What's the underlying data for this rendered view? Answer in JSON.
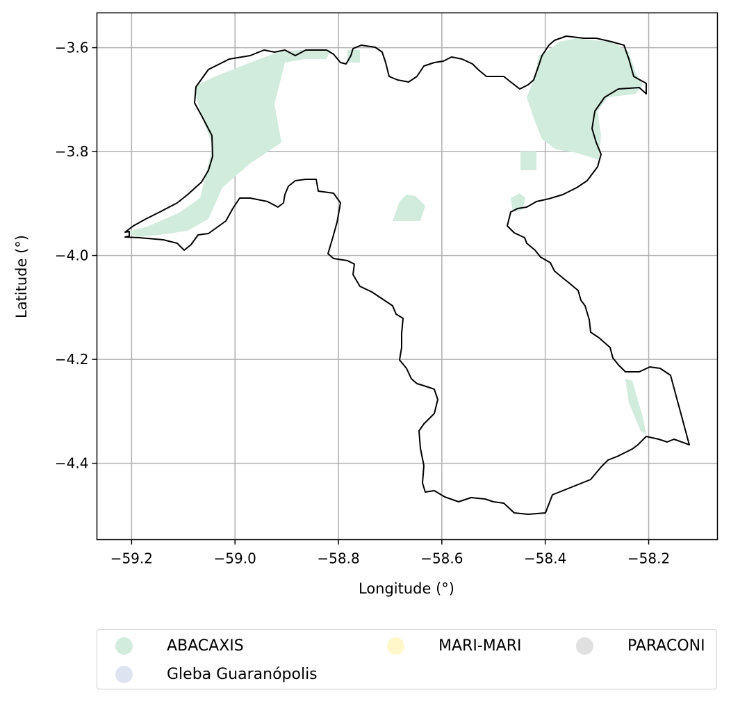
{
  "chart_data": {
    "type": "map",
    "xlabel": "Longitude (°)",
    "ylabel": "Latitude (°)",
    "xlim": [
      -59.267,
      -58.067
    ],
    "ylim": [
      -4.547,
      -3.533
    ],
    "x_ticks": [
      -59.2,
      -59.0,
      -58.8,
      -58.6,
      -58.4,
      -58.2
    ],
    "x_tick_labels": [
      "−59.2",
      "−59.0",
      "−58.8",
      "−58.6",
      "−58.4",
      "−58.2"
    ],
    "y_ticks": [
      -3.6,
      -3.8,
      -4.0,
      -4.2,
      -4.4
    ],
    "y_tick_labels": [
      "−3.6",
      "−3.8",
      "−4.0",
      "−4.2",
      "−4.4"
    ],
    "grid": true,
    "legend_position": "below",
    "categories": [
      {
        "name": "ABACAXIS",
        "color": "#d1ebdd"
      },
      {
        "name": "Gleba Guaranópolis",
        "color": "#dde3f0"
      },
      {
        "name": "MARI-MARI",
        "color": "#fff6c9"
      },
      {
        "name": "PARACONI",
        "color": "#e0e0e0"
      }
    ],
    "boundary_color": "#000000"
  }
}
